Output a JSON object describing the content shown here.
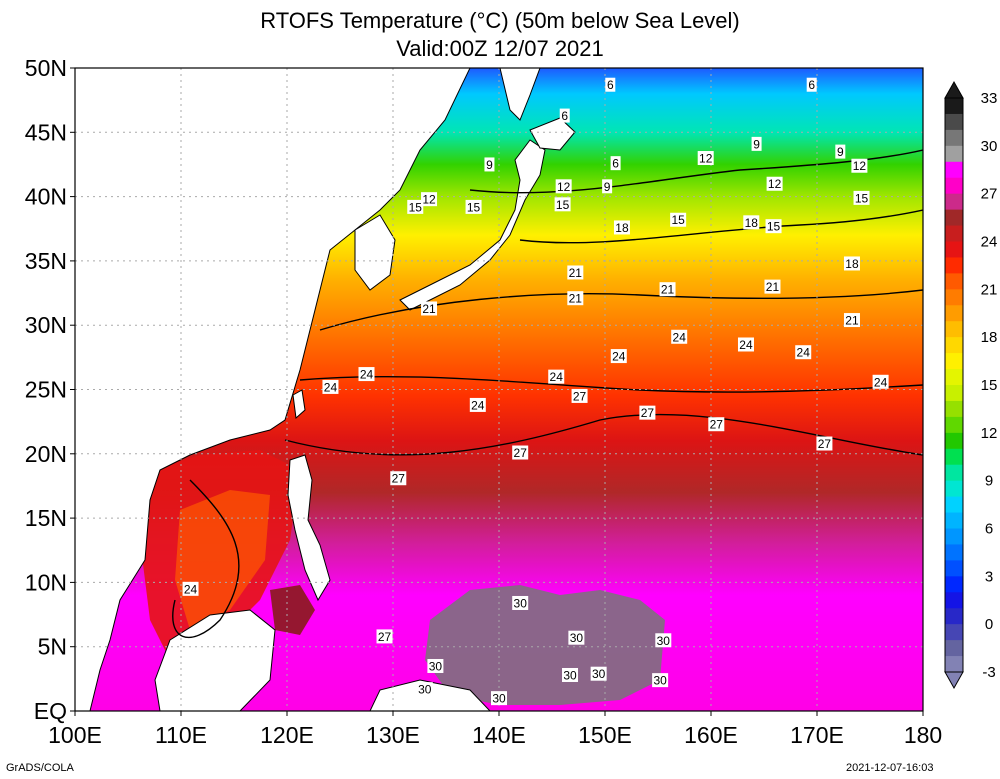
{
  "title": {
    "line1": "RTOFS Temperature (°C) (50m below Sea Level)",
    "line2": "Valid:00Z 12/07 2021"
  },
  "axes": {
    "lat_labels": [
      "50N",
      "45N",
      "40N",
      "35N",
      "30N",
      "25N",
      "20N",
      "15N",
      "10N",
      "5N",
      "EQ"
    ],
    "lat_values": [
      50,
      45,
      40,
      35,
      30,
      25,
      20,
      15,
      10,
      5,
      0
    ],
    "lon_labels": [
      "100E",
      "110E",
      "120E",
      "130E",
      "140E",
      "150E",
      "160E",
      "170E",
      "180"
    ],
    "lon_values": [
      100,
      110,
      120,
      130,
      140,
      150,
      160,
      170,
      180
    ],
    "lon_range": [
      100,
      180
    ],
    "lat_range": [
      0,
      50
    ],
    "grid": "dotted"
  },
  "colorbar": {
    "labels": [
      "33",
      "30",
      "27",
      "24",
      "21",
      "18",
      "15",
      "12",
      "9",
      "6",
      "3",
      "0",
      "-3"
    ],
    "colors": [
      "#1a1a1a",
      "#4a4a4a",
      "#777777",
      "#a0a0a0",
      "#ff00ff",
      "#ff00c8",
      "#cc2a8a",
      "#a02828",
      "#c81e1e",
      "#e61414",
      "#ff2b00",
      "#ff5a00",
      "#ff7c00",
      "#ff9c00",
      "#ffbd00",
      "#ffd800",
      "#fff000",
      "#e4f500",
      "#c8f000",
      "#96e000",
      "#60d800",
      "#22c800",
      "#00e050",
      "#00e6a0",
      "#00e6d2",
      "#00d2ff",
      "#00b4ff",
      "#0096ff",
      "#0073ff",
      "#0050ff",
      "#0028ff",
      "#1414e6",
      "#2828c8",
      "#4646b4",
      "#6464a0",
      "#8282b4"
    ]
  },
  "contour_labels": [
    {
      "text": "6",
      "lon": 150.5,
      "lat": 48.7
    },
    {
      "text": "6",
      "lon": 169.5,
      "lat": 48.7
    },
    {
      "text": "6",
      "lon": 146.2,
      "lat": 46.3
    },
    {
      "text": "9",
      "lon": 164.3,
      "lat": 44.1
    },
    {
      "text": "9",
      "lon": 172.2,
      "lat": 43.5
    },
    {
      "text": "9",
      "lon": 139.1,
      "lat": 42.5
    },
    {
      "text": "6",
      "lon": 151.0,
      "lat": 42.6
    },
    {
      "text": "12",
      "lon": 159.5,
      "lat": 43.0
    },
    {
      "text": "12",
      "lon": 174.0,
      "lat": 42.4
    },
    {
      "text": "12",
      "lon": 146.1,
      "lat": 40.8
    },
    {
      "text": "9",
      "lon": 150.2,
      "lat": 40.8
    },
    {
      "text": "12",
      "lon": 166.0,
      "lat": 41.0
    },
    {
      "text": "15",
      "lon": 174.2,
      "lat": 39.9
    },
    {
      "text": "12",
      "lon": 133.4,
      "lat": 39.8
    },
    {
      "text": "15",
      "lon": 132.1,
      "lat": 39.2
    },
    {
      "text": "15",
      "lon": 137.6,
      "lat": 39.2
    },
    {
      "text": "15",
      "lon": 146.0,
      "lat": 39.4
    },
    {
      "text": "15",
      "lon": 156.9,
      "lat": 38.2
    },
    {
      "text": "18",
      "lon": 151.6,
      "lat": 37.6
    },
    {
      "text": "18",
      "lon": 163.8,
      "lat": 38.0
    },
    {
      "text": "15",
      "lon": 165.9,
      "lat": 37.7
    },
    {
      "text": "18",
      "lon": 173.3,
      "lat": 34.8
    },
    {
      "text": "21",
      "lon": 147.2,
      "lat": 34.1
    },
    {
      "text": "21",
      "lon": 155.9,
      "lat": 32.8
    },
    {
      "text": "21",
      "lon": 165.8,
      "lat": 33.0
    },
    {
      "text": "21",
      "lon": 147.2,
      "lat": 32.1
    },
    {
      "text": "21",
      "lon": 133.4,
      "lat": 31.3
    },
    {
      "text": "21",
      "lon": 173.3,
      "lat": 30.4
    },
    {
      "text": "24",
      "lon": 157.0,
      "lat": 29.1
    },
    {
      "text": "24",
      "lon": 163.3,
      "lat": 28.5
    },
    {
      "text": "24",
      "lon": 168.7,
      "lat": 27.9
    },
    {
      "text": "24",
      "lon": 151.3,
      "lat": 27.6
    },
    {
      "text": "24",
      "lon": 127.5,
      "lat": 26.2
    },
    {
      "text": "24",
      "lon": 145.4,
      "lat": 26.0
    },
    {
      "text": "24",
      "lon": 124.1,
      "lat": 25.2
    },
    {
      "text": "24",
      "lon": 176.0,
      "lat": 25.6
    },
    {
      "text": "27",
      "lon": 147.6,
      "lat": 24.5
    },
    {
      "text": "24",
      "lon": 138.0,
      "lat": 23.8
    },
    {
      "text": "27",
      "lon": 154.0,
      "lat": 23.2
    },
    {
      "text": "27",
      "lon": 160.5,
      "lat": 22.3
    },
    {
      "text": "27",
      "lon": 170.7,
      "lat": 20.8
    },
    {
      "text": "27",
      "lon": 142.0,
      "lat": 20.1
    },
    {
      "text": "27",
      "lon": 130.5,
      "lat": 18.1
    },
    {
      "text": "24",
      "lon": 110.9,
      "lat": 9.5
    },
    {
      "text": "30",
      "lon": 142.0,
      "lat": 8.4
    },
    {
      "text": "30",
      "lon": 147.3,
      "lat": 5.7
    },
    {
      "text": "30",
      "lon": 155.5,
      "lat": 5.5
    },
    {
      "text": "27",
      "lon": 129.2,
      "lat": 5.8
    },
    {
      "text": "30",
      "lon": 134.0,
      "lat": 3.5
    },
    {
      "text": "30",
      "lon": 146.7,
      "lat": 2.8
    },
    {
      "text": "30",
      "lon": 149.4,
      "lat": 2.9
    },
    {
      "text": "30",
      "lon": 155.2,
      "lat": 2.4
    },
    {
      "text": "30",
      "lon": 133.0,
      "lat": 1.7
    },
    {
      "text": "30",
      "lon": 140.0,
      "lat": 1.0
    }
  ],
  "footer": {
    "left": "GrADS/COLA",
    "right": "2021-12-07-16:03"
  }
}
